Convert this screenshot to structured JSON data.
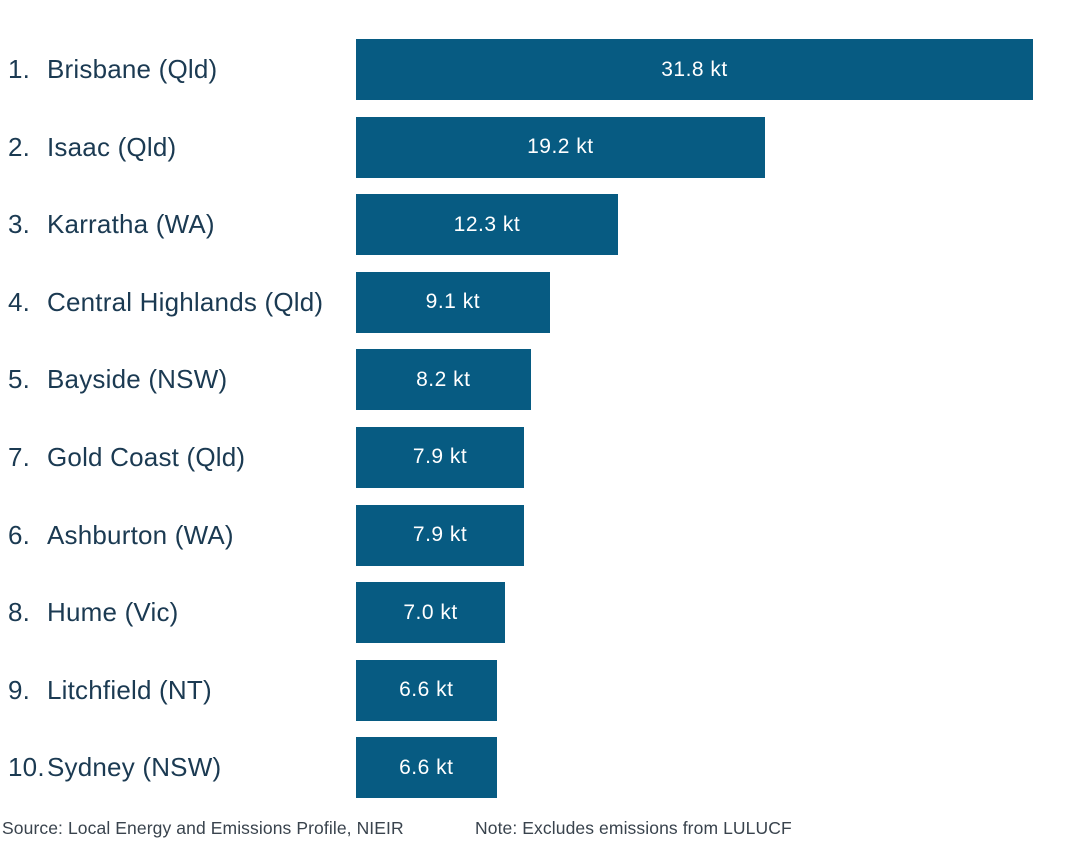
{
  "chart_data": {
    "type": "bar",
    "orientation": "horizontal",
    "unit": "kt",
    "xlim": [
      0,
      31.8
    ],
    "grid": false,
    "legend": false,
    "bar_color": "#075b82",
    "value_label_color": "#ffffff",
    "rows": [
      {
        "rank": "1.",
        "label": "Brisbane (Qld)",
        "value": 31.8,
        "value_label": "31.8 kt"
      },
      {
        "rank": "2.",
        "label": "Isaac (Qld)",
        "value": 19.2,
        "value_label": "19.2 kt"
      },
      {
        "rank": "3.",
        "label": "Karratha (WA)",
        "value": 12.3,
        "value_label": "12.3 kt"
      },
      {
        "rank": "4.",
        "label": "Central Highlands (Qld)",
        "value": 9.1,
        "value_label": "9.1 kt"
      },
      {
        "rank": "5.",
        "label": "Bayside (NSW)",
        "value": 8.2,
        "value_label": "8.2 kt"
      },
      {
        "rank": "7.",
        "label": "Gold Coast (Qld)",
        "value": 7.9,
        "value_label": "7.9 kt"
      },
      {
        "rank": "6.",
        "label": "Ashburton (WA)",
        "value": 7.9,
        "value_label": "7.9 kt"
      },
      {
        "rank": "8.",
        "label": "Hume (Vic)",
        "value": 7.0,
        "value_label": "7.0 kt"
      },
      {
        "rank": "9.",
        "label": "Litchfield (NT)",
        "value": 6.6,
        "value_label": "6.6 kt"
      },
      {
        "rank": "10.",
        "label": "Sydney (NSW)",
        "value": 6.6,
        "value_label": "6.6 kt"
      }
    ]
  },
  "footer": {
    "source": "Source: Local Energy and Emissions Profile, NIEIR",
    "note": "Note: Excludes emissions from LULUCF"
  },
  "colors": {
    "bar": "#075b82",
    "row_label_text": "#1b3a52",
    "footer_text": "#39434d",
    "background": "#ffffff"
  }
}
